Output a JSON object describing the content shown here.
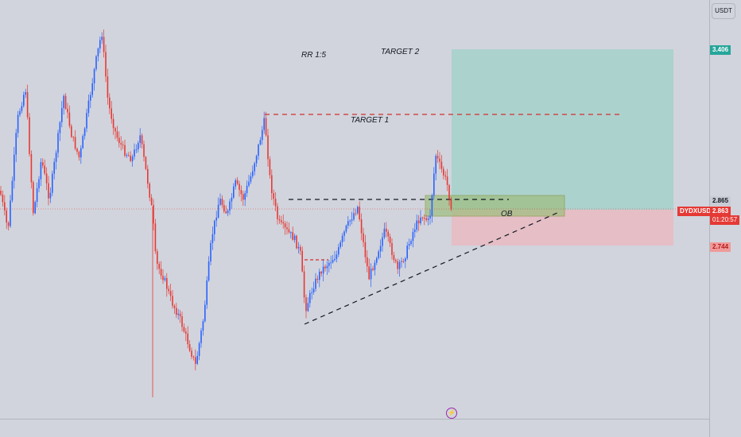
{
  "chart_data": {
    "type": "candlestick",
    "symbol": "DYDXUSDT",
    "currency": "USDT",
    "current_price": "2.863",
    "countdown": "01:20:57",
    "price_labels": {
      "target": "3.406",
      "entry": "2.865",
      "stop": "2.744"
    },
    "annotations": {
      "rr": "RR 1:5",
      "target1": "TARGET 1",
      "target2": "TARGET 2",
      "ob": "OB"
    },
    "colors": {
      "up": "#2962ff",
      "down": "#e53935",
      "profit_zone": "#9fd1c9",
      "loss_zone": "#eab8c0",
      "order_block": "#9dbe7d"
    }
  }
}
